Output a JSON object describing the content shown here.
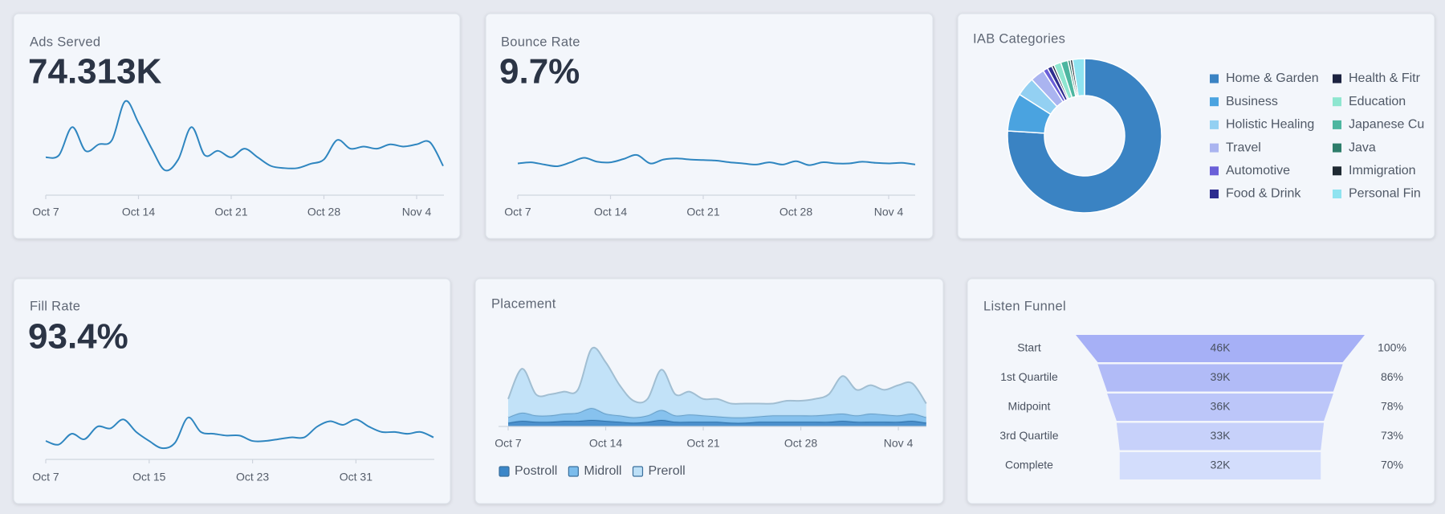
{
  "chart_data": [
    {
      "type": "line",
      "title": "Ads Served",
      "kpi": "74.313K",
      "color": "#2f86c0",
      "categories": [
        "Oct 7",
        null,
        null,
        null,
        null,
        null,
        null,
        "Oct 14",
        null,
        null,
        null,
        null,
        null,
        null,
        "Oct 21",
        null,
        null,
        null,
        null,
        null,
        null,
        "Oct 28",
        null,
        null,
        null,
        null,
        null,
        null,
        "Nov 4",
        null,
        null
      ],
      "values": [
        2.0,
        2.1,
        3.4,
        2.3,
        2.6,
        2.8,
        4.6,
        3.6,
        2.4,
        1.4,
        1.9,
        3.4,
        2.1,
        2.3,
        2.0,
        2.4,
        2.0,
        1.6,
        1.5,
        1.5,
        1.7,
        1.9,
        2.8,
        2.4,
        2.5,
        2.4,
        2.6,
        2.5,
        2.6,
        2.7,
        1.6
      ]
    },
    {
      "type": "line",
      "title": "Bounce Rate",
      "kpi": "9.7%",
      "color": "#2f86c0",
      "categories": [
        "Oct 7",
        null,
        null,
        null,
        null,
        null,
        null,
        "Oct 14",
        null,
        null,
        null,
        null,
        null,
        null,
        "Oct 21",
        null,
        null,
        null,
        null,
        null,
        null,
        "Oct 28",
        null,
        null,
        null,
        null,
        null,
        null,
        "Nov 4",
        null,
        null
      ],
      "values": [
        9.6,
        9.62,
        9.58,
        9.55,
        9.62,
        9.7,
        9.63,
        9.62,
        9.68,
        9.75,
        9.6,
        9.67,
        9.69,
        9.67,
        9.66,
        9.65,
        9.62,
        9.6,
        9.58,
        9.62,
        9.58,
        9.64,
        9.57,
        9.62,
        9.6,
        9.6,
        9.63,
        9.61,
        9.6,
        9.61,
        9.58
      ]
    },
    {
      "type": "pie",
      "title": "IAB Categories",
      "categories": [
        "Home & Garden",
        "Business",
        "Holistic Healing",
        "Travel",
        "Automotive",
        "Food & Drink",
        "Health & Fitr",
        "Education",
        "Japanese Cu",
        "Java",
        "Immigration",
        "Personal Fin"
      ],
      "values": [
        76,
        8,
        4,
        3,
        1,
        1,
        0.5,
        1.5,
        1.5,
        0.5,
        0.5,
        2.5
      ],
      "colors": [
        "#3a83c3",
        "#4aa3e0",
        "#93d0f2",
        "#aab4f0",
        "#6a5fd8",
        "#2e2d8f",
        "#1c2340",
        "#8ee6d0",
        "#4db6a0",
        "#2e7d6b",
        "#1f2a33",
        "#8fe3f0"
      ]
    },
    {
      "type": "line",
      "title": "Fill Rate",
      "kpi": "93.4%",
      "color": "#2f86c0",
      "categories": [
        "Oct 7",
        null,
        null,
        null,
        null,
        null,
        null,
        null,
        "Oct 15",
        null,
        null,
        null,
        null,
        null,
        null,
        null,
        "Oct 23",
        null,
        null,
        null,
        null,
        null,
        null,
        null,
        "Oct 31",
        null,
        null,
        null,
        null,
        null,
        null
      ],
      "values": [
        92.8,
        92.6,
        93.2,
        92.9,
        93.6,
        93.5,
        94.0,
        93.3,
        92.8,
        92.4,
        92.7,
        94.1,
        93.3,
        93.2,
        93.1,
        93.1,
        92.8,
        92.8,
        92.9,
        93.0,
        93.0,
        93.6,
        93.9,
        93.7,
        94.0,
        93.6,
        93.3,
        93.3,
        93.2,
        93.3,
        93.0
      ]
    },
    {
      "type": "area",
      "title": "Placement",
      "stacked": true,
      "categories": [
        "Oct 7",
        null,
        null,
        null,
        null,
        null,
        null,
        "Oct 14",
        null,
        null,
        null,
        null,
        null,
        null,
        "Oct 21",
        null,
        null,
        null,
        null,
        null,
        null,
        "Oct 28",
        null,
        null,
        null,
        null,
        null,
        null,
        "Nov 4",
        null,
        null
      ],
      "series": [
        {
          "name": "Postroll",
          "color": "#3a86c8",
          "values": [
            4,
            6,
            5,
            5,
            6,
            6,
            7,
            6,
            5,
            4,
            5,
            7,
            5,
            5,
            5,
            5,
            4,
            4,
            5,
            5,
            5,
            5,
            5,
            5,
            6,
            5,
            5,
            5,
            5,
            6,
            4
          ]
        },
        {
          "name": "Midroll",
          "color": "#7bbcec",
          "values": [
            6,
            9,
            7,
            7,
            8,
            9,
            13,
            8,
            7,
            6,
            7,
            11,
            7,
            8,
            7,
            6,
            6,
            6,
            6,
            7,
            7,
            7,
            7,
            8,
            8,
            7,
            9,
            8,
            7,
            8,
            6
          ]
        },
        {
          "name": "Preroll",
          "color": "#bde0f7",
          "values": [
            20,
            48,
            23,
            23,
            24,
            25,
            65,
            56,
            33,
            18,
            18,
            44,
            23,
            25,
            18,
            19,
            15,
            15,
            14,
            13,
            16,
            16,
            18,
            22,
            41,
            28,
            31,
            27,
            33,
            33,
            15
          ]
        }
      ]
    },
    {
      "type": "funnel",
      "title": "Listen Funnel",
      "categories": [
        "Start",
        "1st Quartile",
        "Midpoint",
        "3rd Quartile",
        "Complete"
      ],
      "values": [
        46000,
        39000,
        36000,
        33000,
        32000
      ],
      "value_labels": [
        "46K",
        "39K",
        "36K",
        "33K",
        "32K"
      ],
      "percent_labels": [
        "100%",
        "86%",
        "78%",
        "73%",
        "70%"
      ],
      "colors": [
        "#a6b0f6",
        "#b1bbf7",
        "#bcc6f9",
        "#c7d1fa",
        "#d3ddfc"
      ]
    }
  ]
}
